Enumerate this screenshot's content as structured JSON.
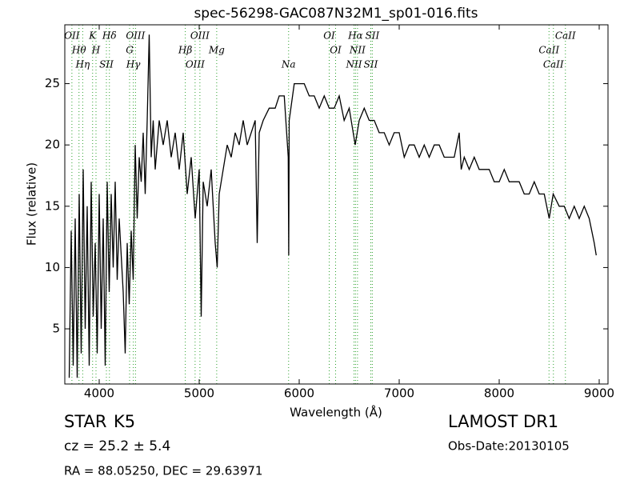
{
  "chart_data": {
    "type": "line",
    "title": "spec-56298-GAC087N32M1_sp01-016.fits",
    "x_label": "Wavelength (Å)",
    "y_label": "Flux (relative)",
    "color": "#000000",
    "line_color": "#2ca02c",
    "x": [
      3700,
      3720,
      3740,
      3760,
      3780,
      3800,
      3820,
      3840,
      3860,
      3880,
      3900,
      3920,
      3940,
      3960,
      3980,
      4000,
      4020,
      4040,
      4060,
      4080,
      4100,
      4120,
      4140,
      4160,
      4180,
      4200,
      4220,
      4240,
      4260,
      4280,
      4300,
      4320,
      4340,
      4360,
      4380,
      4400,
      4420,
      4440,
      4460,
      4480,
      4500,
      4520,
      4540,
      4560,
      4600,
      4640,
      4680,
      4720,
      4760,
      4800,
      4840,
      4880,
      4920,
      4960,
      5000,
      5020,
      5040,
      5080,
      5120,
      5160,
      5180,
      5200,
      5240,
      5280,
      5320,
      5360,
      5400,
      5440,
      5480,
      5520,
      5560,
      5580,
      5600,
      5640,
      5700,
      5760,
      5800,
      5850,
      5890,
      5895,
      5900,
      5950,
      6000,
      6050,
      6100,
      6150,
      6200,
      6250,
      6300,
      6350,
      6400,
      6450,
      6500,
      6560,
      6600,
      6650,
      6700,
      6750,
      6800,
      6850,
      6900,
      6950,
      7000,
      7050,
      7100,
      7150,
      7200,
      7250,
      7300,
      7350,
      7400,
      7450,
      7500,
      7550,
      7600,
      7620,
      7650,
      7700,
      7750,
      7800,
      7850,
      7900,
      7950,
      8000,
      8050,
      8100,
      8150,
      8200,
      8250,
      8300,
      8350,
      8400,
      8450,
      8500,
      8540,
      8600,
      8650,
      8700,
      8750,
      8800,
      8850,
      8900,
      8950,
      8970
    ],
    "values": [
      1,
      13,
      2,
      14,
      1,
      16,
      3,
      18,
      5,
      15,
      2,
      17,
      6,
      12,
      3,
      16,
      5,
      14,
      2,
      17,
      8,
      16,
      10,
      17,
      9,
      14,
      11,
      8,
      3,
      12,
      7,
      13,
      9,
      20,
      14,
      19,
      17,
      21,
      16,
      22,
      29,
      19,
      22,
      18,
      22,
      20,
      22,
      19,
      21,
      18,
      21,
      16,
      19,
      14,
      18,
      6,
      17,
      15,
      18,
      12,
      10,
      16,
      18,
      20,
      19,
      21,
      20,
      22,
      20,
      21,
      22,
      12,
      21,
      22,
      23,
      23,
      24,
      24,
      19,
      11,
      22,
      25,
      25,
      25,
      24,
      24,
      23,
      24,
      23,
      23,
      24,
      22,
      23,
      20,
      22,
      23,
      22,
      22,
      21,
      21,
      20,
      21,
      21,
      19,
      20,
      20,
      19,
      20,
      19,
      20,
      20,
      19,
      19,
      19,
      21,
      18,
      19,
      18,
      19,
      18,
      18,
      18,
      17,
      17,
      18,
      17,
      17,
      17,
      16,
      16,
      17,
      16,
      16,
      14,
      16,
      15,
      15,
      14,
      15,
      14,
      15,
      14,
      12,
      11
    ],
    "xlim": [
      3656,
      9088
    ],
    "ylim": [
      0.5,
      29.8
    ],
    "xticks": [
      4000,
      5000,
      6000,
      7000,
      8000,
      9000
    ],
    "yticks": [
      5,
      10,
      15,
      20,
      25
    ],
    "lines": [
      {
        "label": "OII",
        "x": 3727
      },
      {
        "label": "Hθ",
        "x": 3798
      },
      {
        "label": "Hη",
        "x": 3835
      },
      {
        "label": "K",
        "x": 3934
      },
      {
        "label": "H",
        "x": 3968
      },
      {
        "label": "SII",
        "x": 4072
      },
      {
        "label": "Hδ",
        "x": 4102
      },
      {
        "label": "G",
        "x": 4304
      },
      {
        "label": "Hγ",
        "x": 4341
      },
      {
        "label": "OIII",
        "x": 4363
      },
      {
        "label": "Hβ",
        "x": 4861
      },
      {
        "label": "OIII",
        "x": 4959
      },
      {
        "label": "OIII",
        "x": 5007
      },
      {
        "label": "Mg",
        "x": 5175
      },
      {
        "label": "Na",
        "x": 5894
      },
      {
        "label": "OI",
        "x": 6300
      },
      {
        "label": "OI",
        "x": 6364
      },
      {
        "label": "NII",
        "x": 6548
      },
      {
        "label": "Hα",
        "x": 6563
      },
      {
        "label": "NII",
        "x": 6583
      },
      {
        "label": "SII",
        "x": 6716
      },
      {
        "label": "SII",
        "x": 6731
      },
      {
        "label": "CaII",
        "x": 8498
      },
      {
        "label": "CaII",
        "x": 8542
      },
      {
        "label": "CaII",
        "x": 8662
      }
    ]
  },
  "footer": {
    "object_class": "STAR",
    "subclass": "K5",
    "redshift": "cz = 25.2  ± 5.4",
    "coords": "RA = 88.05250, DEC = 29.63971",
    "survey": "LAMOST DR1",
    "obs_date": "Obs-Date:20130105"
  }
}
